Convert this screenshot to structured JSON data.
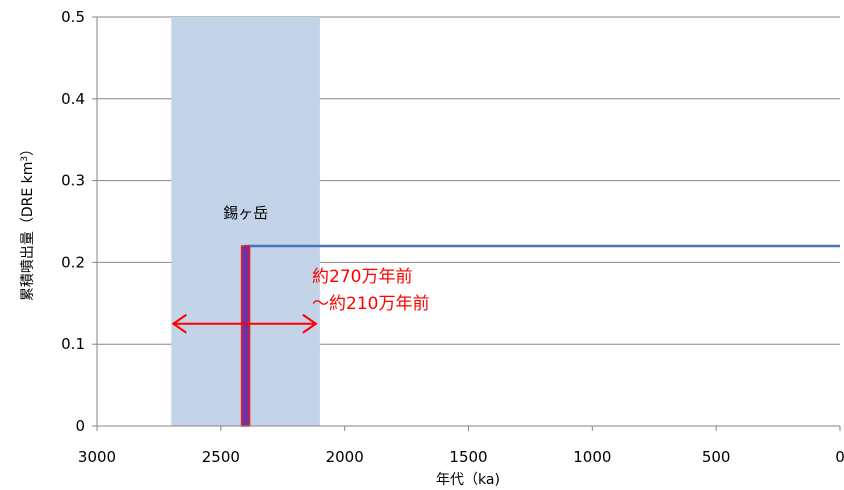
{
  "chart_data": {
    "type": "line",
    "title": "",
    "xlabel": "年代（ka)",
    "ylabel": "累積噴出量 (DRE km³)",
    "ylabel_main": "累積噴出量（DRE km",
    "ylabel_sup": "3",
    "ylabel_close": "）",
    "x_reversed": true,
    "xlim": [
      3000,
      0
    ],
    "ylim": [
      0,
      0.5
    ],
    "x_ticks": [
      3000,
      2500,
      2000,
      1500,
      1000,
      500,
      0
    ],
    "x_tick_labels": [
      "3000",
      "2500",
      "2000",
      "1500",
      "1000",
      "500",
      "0"
    ],
    "y_ticks": [
      0,
      0.1,
      0.2,
      0.3,
      0.4,
      0.5
    ],
    "y_tick_labels": [
      "0",
      "0.1",
      "0.2",
      "0.3",
      "0.4",
      "0.5"
    ],
    "grid": "horizontal",
    "activity_period": {
      "label": "錫ヶ岳",
      "x_start": 2700,
      "x_end": 2100,
      "color": "#c3d4e8"
    },
    "eruption_bar": {
      "x": 2400,
      "y_bottom": 0,
      "y_top": 0.22,
      "fill": "#7030a0",
      "outline": "#e02020"
    },
    "series": [
      {
        "color": "#4a76c0",
        "x": [
          2400,
          2400,
          0
        ],
        "y": [
          0,
          0.22,
          0.22
        ]
      }
    ],
    "annotation": {
      "lines": [
        "約270万年前",
        "～約210万年前"
      ],
      "color": "#ff0000",
      "arrow_from": 2700,
      "arrow_to": 2100,
      "arrow_y": 0.125
    }
  }
}
